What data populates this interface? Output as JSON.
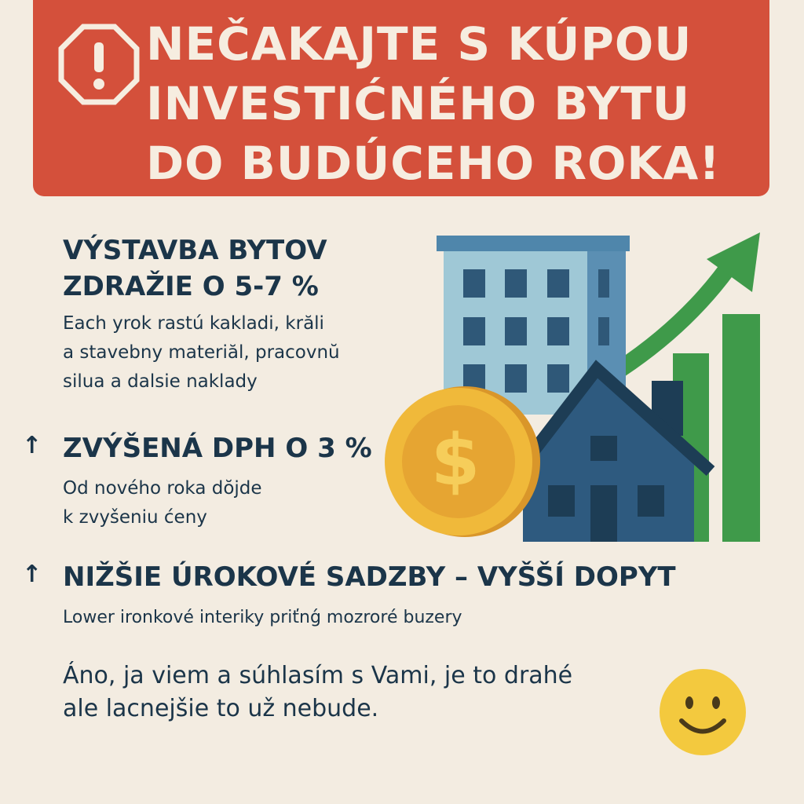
{
  "banner": {
    "icon": "warning-octagon-icon",
    "title_lines": [
      "NEČAKAJTE S KÚPOU",
      "INVESTIĆNÉHO BYTU",
      "DO BUDÚCEHO ROKA!"
    ],
    "color": "#d4503b"
  },
  "sections": [
    {
      "heading_lines": [
        "VÝSTAVBA BYTOV",
        "ZDRAŽIE O 5-7 %"
      ],
      "body_lines": [
        "Each yrok rastú kakladi, krăli",
        "a stavebny materiăl, pracovnŭ",
        "silua a dalsie naklady"
      ]
    },
    {
      "arrow": "↑",
      "heading": "ZVÝŠENÁ DPH O 3 %",
      "body_lines": [
        "Od nového roka dŏjde",
        "k zvyšeniu ćeny"
      ]
    },
    {
      "arrow": "↑",
      "heading": "NIŽŠIE ÚROKOVÉ SADZBY – VYŠŠÍ DOPYT",
      "body_lines": [
        "Lower ironkové interiky priťnǵ mozroré buzery"
      ]
    }
  ],
  "closing_lines": [
    "Áno, ja viem a súhlasím s Vami, je to drahé",
    "ale lacnejšie to už nebude."
  ],
  "illustration": {
    "icons": [
      "apartment-building-icon",
      "house-icon",
      "dollar-coin-icon",
      "growth-arrow-icon",
      "bar-chart-icon"
    ]
  },
  "emoji": "smiley-face-icon",
  "colors": {
    "text": "#1b3549",
    "background": "#f3ece1",
    "green": "#3f9a4a",
    "gold": "#f0b93a"
  }
}
